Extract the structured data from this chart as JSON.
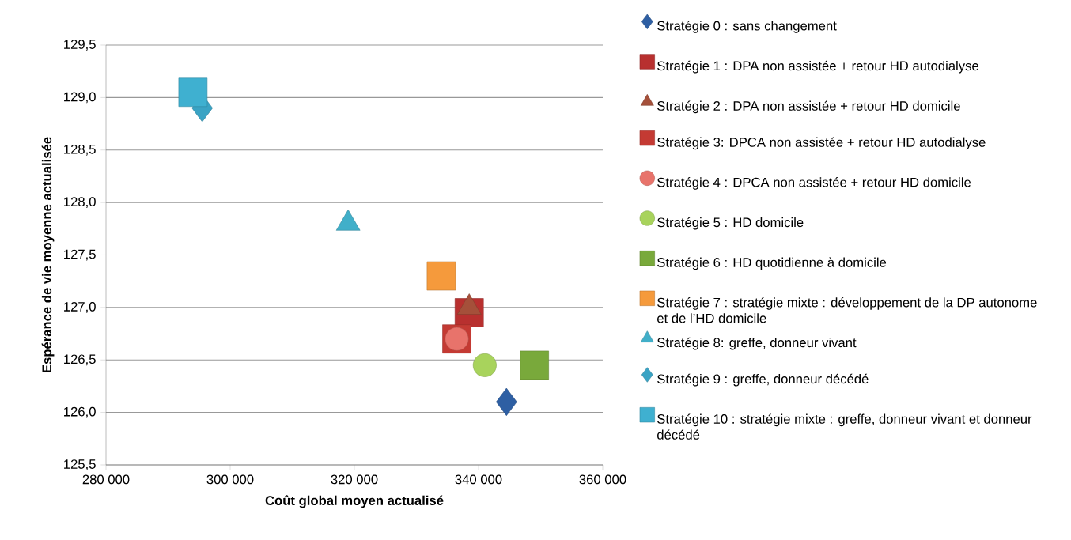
{
  "chart_data": {
    "type": "scatter",
    "xlabel": "Coût global moyen actualisé",
    "ylabel": "Espérance de vie moyenne actualisée",
    "xlim": [
      280000,
      360000
    ],
    "ylim": [
      125.5,
      129.5
    ],
    "xticks": [
      {
        "value": 280000,
        "label": "280 000"
      },
      {
        "value": 300000,
        "label": "300 000"
      },
      {
        "value": 320000,
        "label": "320 000"
      },
      {
        "value": 340000,
        "label": "340 000"
      },
      {
        "value": 360000,
        "label": "360 000"
      }
    ],
    "yticks": [
      {
        "value": 125.5,
        "label": "125,5"
      },
      {
        "value": 126.0,
        "label": "126,0"
      },
      {
        "value": 126.5,
        "label": "126,5"
      },
      {
        "value": 127.0,
        "label": "127,0"
      },
      {
        "value": 127.5,
        "label": "127,5"
      },
      {
        "value": 128.0,
        "label": "128,0"
      },
      {
        "value": 128.5,
        "label": "128,5"
      },
      {
        "value": 129.0,
        "label": "129,0"
      },
      {
        "value": 129.5,
        "label": "129,5"
      }
    ],
    "grid": "y",
    "legend": "right",
    "series": [
      {
        "name": "Stratégie 0 : sans changement",
        "color": "#2e5fa3",
        "marker": "diamond",
        "x": [
          344500
        ],
        "values": [
          126.1
        ]
      },
      {
        "name": "Stratégie 1 : DPA non assistée + retour HD autodialyse",
        "color": "#b8302f",
        "marker": "square",
        "x": [
          338500
        ],
        "values": [
          126.95
        ]
      },
      {
        "name": "Stratégie 2 : DPA non assistée + retour HD domicile",
        "color": "#a5503a",
        "marker": "triangle",
        "x": [
          338500
        ],
        "values": [
          127.0
        ]
      },
      {
        "name": "Stratégie 3: DPCA non assistée + retour HD autodialyse",
        "color": "#c43a33",
        "marker": "square",
        "x": [
          336500
        ],
        "values": [
          126.7
        ]
      },
      {
        "name": "Stratégie 4 : DPCA non assistée + retour HD domicile",
        "color": "#e8736b",
        "marker": "circle",
        "x": [
          336500
        ],
        "values": [
          126.7
        ]
      },
      {
        "name": "Stratégie 5 : HD domicile",
        "color": "#a8d35c",
        "marker": "circle",
        "x": [
          341000
        ],
        "values": [
          126.45
        ]
      },
      {
        "name": "Stratégie 6 :  HD quotidienne à  domicile",
        "color": "#79a93b",
        "marker": "square",
        "x": [
          349000
        ],
        "values": [
          126.45
        ]
      },
      {
        "name": "Stratégie 7 : stratégie mixte : développement de la DP autonome et de l’HD domicile",
        "color": "#f59a3c",
        "marker": "square",
        "x": [
          334000
        ],
        "values": [
          127.3
        ]
      },
      {
        "name": "Stratégie 8: greffe, donneur vivant",
        "color": "#41afc9",
        "marker": "triangle",
        "x": [
          319000
        ],
        "values": [
          127.8
        ]
      },
      {
        "name": "Stratégie 9 : greffe, donneur décédé",
        "color": "#3aa3c4",
        "marker": "diamond",
        "x": [
          295500
        ],
        "values": [
          128.9
        ]
      },
      {
        "name": "Stratégie 10 : stratégie mixte : greffe, donneur vivant et donneur décédé",
        "color": "#3fb0d0",
        "marker": "square",
        "x": [
          294000
        ],
        "values": [
          129.05
        ]
      }
    ]
  }
}
